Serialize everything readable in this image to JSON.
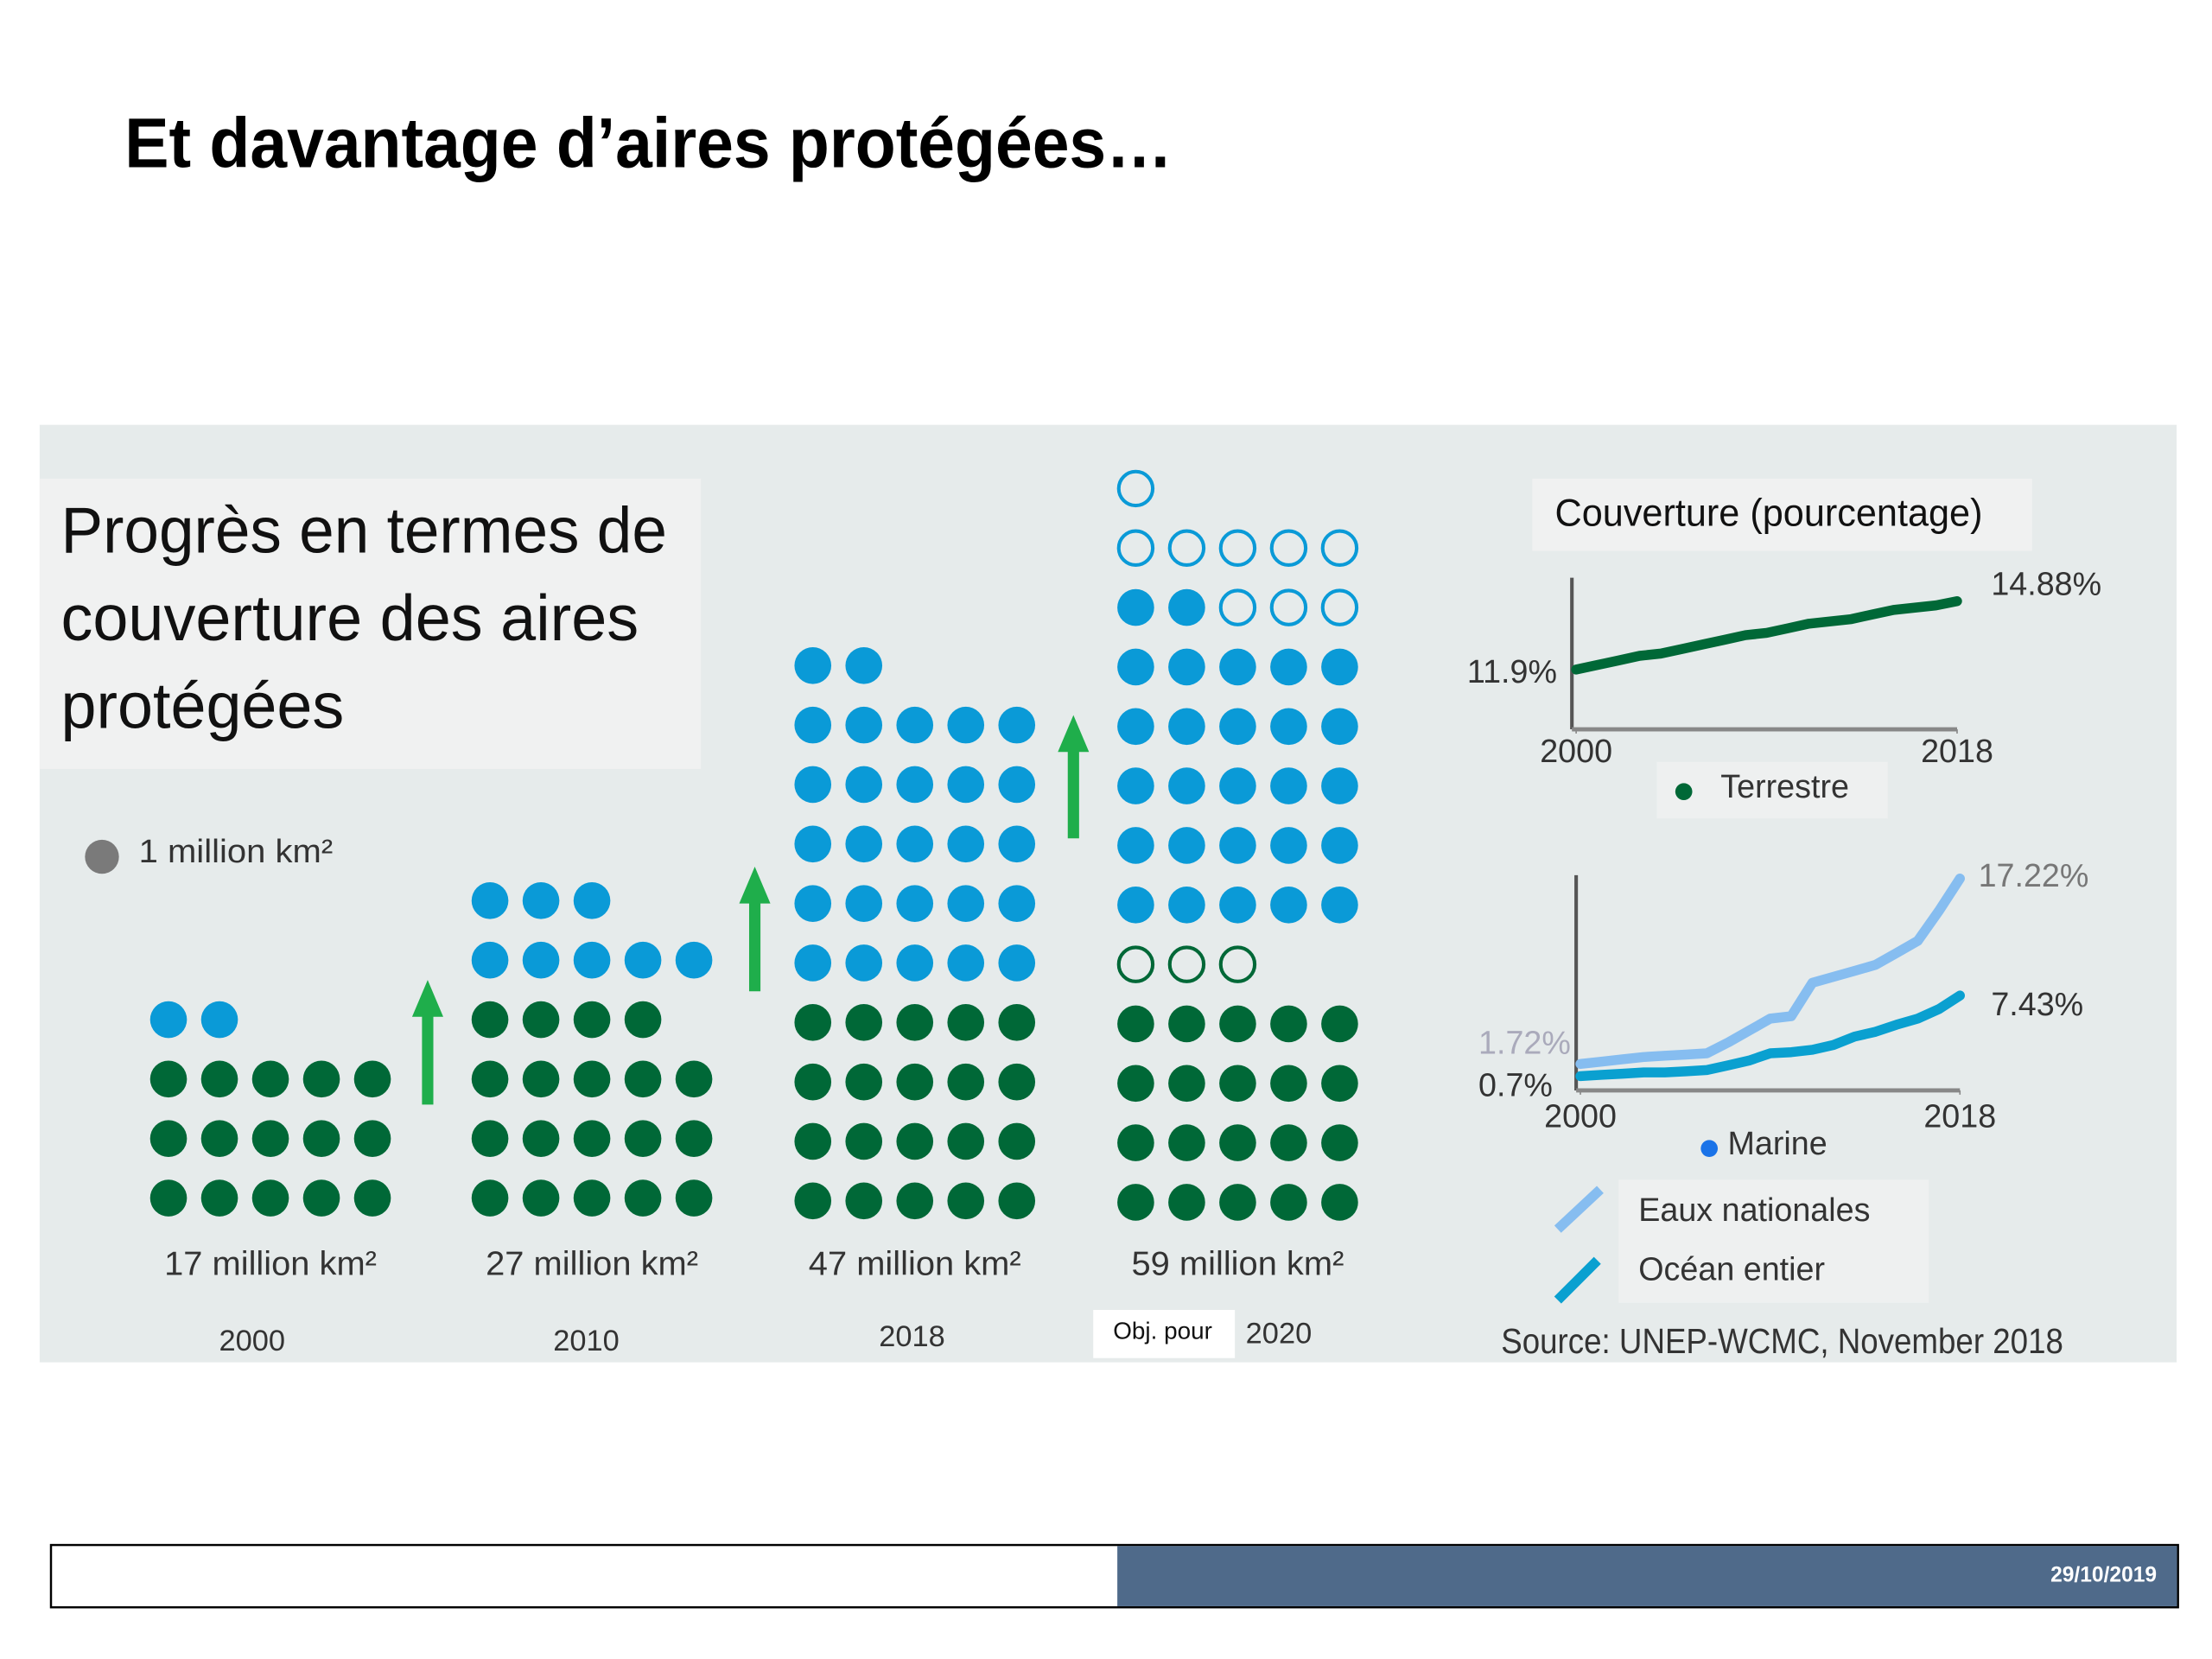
{
  "title": "Et davantage d’aires protégées…",
  "infographic": {
    "heading": [
      "Progrès en termes de",
      "couverture des aires",
      "protégées"
    ],
    "legend": "1 million km²",
    "legend_color": "#7a7a7a",
    "arrow_color": "#1fae4b",
    "target_note": "Obj. pour",
    "columns": [
      {
        "area": "17 million km²",
        "year": "2000",
        "dots": [
          {
            "count": 15,
            "color": "#006837",
            "filled": true
          },
          {
            "count": 2,
            "color": "#0a9ad7",
            "filled": true
          }
        ]
      },
      {
        "area": "27 million km²",
        "year": "2010",
        "dots": [
          {
            "count": 19,
            "color": "#006837",
            "filled": true
          },
          {
            "count": 8,
            "color": "#0a9ad7",
            "filled": true
          }
        ]
      },
      {
        "area": "47 million km²",
        "year": "2018",
        "dots": [
          {
            "count": 20,
            "color": "#006837",
            "filled": true
          },
          {
            "count": 27,
            "color": "#0a9ad7",
            "filled": true
          }
        ]
      },
      {
        "area": "59 million km²",
        "year": "2020",
        "dots": [
          {
            "count": 20,
            "color": "#006837",
            "filled": true
          },
          {
            "count": 3,
            "color": "#006837",
            "filled": false
          },
          {
            "count": 27,
            "color": "#0a9ad7",
            "filled": true
          },
          {
            "count": 9,
            "color": "#0a9ad7",
            "filled": false
          }
        ]
      }
    ]
  },
  "coverage": {
    "title": "Couverture (pourcentage)",
    "x": [
      2000,
      2001,
      2002,
      2003,
      2004,
      2005,
      2006,
      2007,
      2008,
      2009,
      2010,
      2011,
      2012,
      2013,
      2014,
      2015,
      2016,
      2017,
      2018
    ],
    "xticks": [
      2000,
      2018
    ],
    "terrestrial": {
      "type": "line",
      "legend": "Terrestre",
      "ylim": [
        9.3,
        15.9
      ],
      "series": [
        {
          "name": "Terrestre",
          "color": "#006837",
          "start_label": "11.9%",
          "end_label": "14.88%",
          "values": [
            11.9,
            12.1,
            12.3,
            12.5,
            12.6,
            12.8,
            13.0,
            13.2,
            13.4,
            13.5,
            13.7,
            13.9,
            14.0,
            14.1,
            14.3,
            14.5,
            14.6,
            14.7,
            14.88
          ]
        }
      ]
    },
    "marine": {
      "type": "line",
      "legend": "Marine",
      "legend_color": "#1a73e8",
      "ylim": [
        -0.5,
        17.5
      ],
      "series": [
        {
          "name": "Eaux nationales",
          "color": "#86bdf0",
          "start_label": "1.72%",
          "end_label": "17.22%",
          "values": [
            1.72,
            1.9,
            2.1,
            2.3,
            2.4,
            2.5,
            2.6,
            3.5,
            4.5,
            5.5,
            5.7,
            8.5,
            9.0,
            9.5,
            10.0,
            11.0,
            12.0,
            14.5,
            17.22
          ]
        },
        {
          "name": "Océan entier",
          "color": "#0aa0d0",
          "start_label": "0.7%",
          "end_label": "7.43%",
          "values": [
            0.7,
            0.8,
            0.9,
            1.0,
            1.0,
            1.1,
            1.2,
            1.6,
            2.0,
            2.6,
            2.7,
            2.9,
            3.3,
            4.0,
            4.4,
            5.0,
            5.5,
            6.3,
            7.43
          ]
        }
      ]
    }
  },
  "source": "Source: UNEP-WCMC, November 2018",
  "footer": {
    "date": "29/10/2019"
  }
}
